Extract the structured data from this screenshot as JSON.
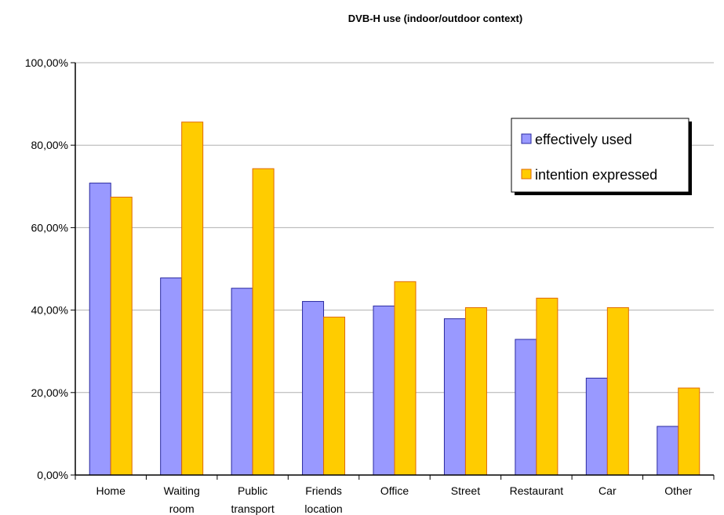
{
  "chart_data": {
    "type": "bar",
    "title": "DVB-H use (indoor/outdoor context)",
    "categories": [
      [
        "Home"
      ],
      [
        "Waiting",
        "room"
      ],
      [
        "Public",
        "transport"
      ],
      [
        "Friends",
        "location"
      ],
      [
        "Office"
      ],
      [
        "Street"
      ],
      [
        "Restaurant"
      ],
      [
        "Car"
      ],
      [
        "Other"
      ]
    ],
    "series": [
      {
        "name": "effectively used",
        "color": "#9999ff",
        "border": "#2a2aa0",
        "values": [
          0.708,
          0.478,
          0.453,
          0.421,
          0.41,
          0.379,
          0.329,
          0.235,
          0.118
        ]
      },
      {
        "name": "intention expressed",
        "color": "#ffcc00",
        "border": "#e06a00",
        "values": [
          0.674,
          0.856,
          0.743,
          0.383,
          0.469,
          0.406,
          0.429,
          0.406,
          0.211
        ]
      }
    ],
    "ylim": [
      0,
      1
    ],
    "yticks": [
      0,
      0.2,
      0.4,
      0.6,
      0.8,
      1.0
    ],
    "ytick_labels": [
      "0,00%",
      "20,00%",
      "40,00%",
      "60,00%",
      "80,00%",
      "100,00%"
    ],
    "grid": true,
    "legend_position": "top-right"
  }
}
